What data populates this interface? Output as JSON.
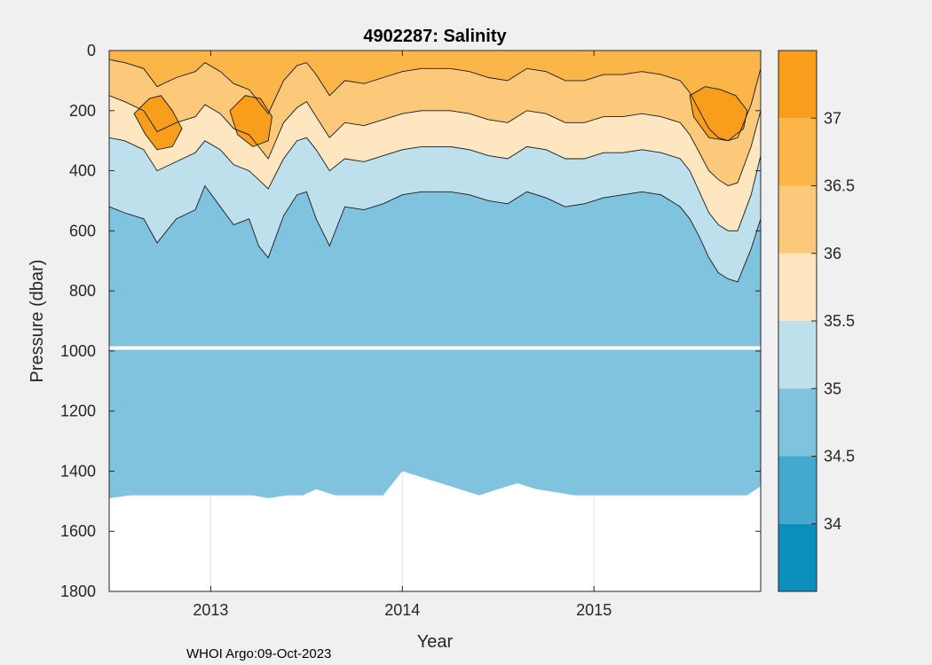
{
  "chart_data": {
    "type": "heatmap",
    "title": "4902287:  Salinity",
    "xlabel": "Year",
    "ylabel": "Pressure (dbar)",
    "footer": "WHOI Argo:09-Oct-2023",
    "xlim": [
      2012.47,
      2015.87
    ],
    "ylim": [
      0,
      1800
    ],
    "x_ticks": [
      {
        "value": 2013,
        "label": "2013"
      },
      {
        "value": 2014,
        "label": "2014"
      },
      {
        "value": 2015,
        "label": "2015"
      }
    ],
    "y_ticks": [
      {
        "value": 0,
        "label": "0"
      },
      {
        "value": 200,
        "label": "200"
      },
      {
        "value": 400,
        "label": "400"
      },
      {
        "value": 600,
        "label": "600"
      },
      {
        "value": 800,
        "label": "800"
      },
      {
        "value": 1000,
        "label": "1000"
      },
      {
        "value": 1200,
        "label": "1200"
      },
      {
        "value": 1400,
        "label": "1400"
      },
      {
        "value": 1600,
        "label": "1600"
      },
      {
        "value": 1800,
        "label": "1800"
      }
    ],
    "colorbar": {
      "range": [
        33.5,
        37.5
      ],
      "bands": [
        {
          "from": 33.5,
          "to": 34.0,
          "color": "#0d8fbd"
        },
        {
          "from": 34.0,
          "to": 34.5,
          "color": "#45a9cf"
        },
        {
          "from": 34.5,
          "to": 35.0,
          "color": "#7fc3df"
        },
        {
          "from": 35.0,
          "to": 35.5,
          "color": "#bde0ec"
        },
        {
          "from": 35.5,
          "to": 36.0,
          "color": "#fde6c0"
        },
        {
          "from": 36.0,
          "to": 36.5,
          "color": "#fcc97b"
        },
        {
          "from": 36.5,
          "to": 37.0,
          "color": "#fbb549"
        },
        {
          "from": 37.0,
          "to": 37.5,
          "color": "#f99e1c"
        }
      ],
      "ticks": [
        {
          "value": 34,
          "label": "34"
        },
        {
          "value": 34.5,
          "label": "34.5"
        },
        {
          "value": 35,
          "label": "35"
        },
        {
          "value": 35.5,
          "label": "35.5"
        },
        {
          "value": 36,
          "label": "36"
        },
        {
          "value": 36.5,
          "label": "36.5"
        },
        {
          "value": 37,
          "label": "37"
        }
      ]
    },
    "contours": [
      {
        "level": 34.5,
        "color": "#7fc3df",
        "x": [
          2012.47,
          2012.58,
          2012.7,
          2012.75,
          2012.85,
          2013.0,
          2013.15,
          2013.22,
          2013.3,
          2013.4,
          2013.48,
          2013.55,
          2013.65,
          2013.8,
          2013.9,
          2014.0,
          2014.2,
          2014.4,
          2014.5,
          2014.6,
          2014.7,
          2014.9,
          2015.05,
          2015.2,
          2015.4,
          2015.5,
          2015.55,
          2015.6,
          2015.7,
          2015.8,
          2015.87
        ],
        "pressure": [
          1490,
          1480,
          1480,
          1480,
          1480,
          1480,
          1480,
          1480,
          1490,
          1480,
          1480,
          1460,
          1480,
          1480,
          1480,
          1400,
          1440,
          1480,
          1460,
          1440,
          1460,
          1480,
          1480,
          1480,
          1480,
          1480,
          1480,
          1480,
          1480,
          1480,
          1450
        ]
      },
      {
        "level": 35.0,
        "color": "#bde0ec",
        "x": [
          2012.47,
          2012.55,
          2012.65,
          2012.72,
          2012.82,
          2012.92,
          2012.97,
          2013.05,
          2013.12,
          2013.2,
          2013.25,
          2013.3,
          2013.38,
          2013.45,
          2013.5,
          2013.55,
          2013.62,
          2013.7,
          2013.8,
          2013.9,
          2014.0,
          2014.1,
          2014.25,
          2014.35,
          2014.45,
          2014.55,
          2014.65,
          2014.75,
          2014.85,
          2014.95,
          2015.05,
          2015.15,
          2015.25,
          2015.35,
          2015.45,
          2015.5,
          2015.55,
          2015.6,
          2015.65,
          2015.7,
          2015.75,
          2015.82,
          2015.87
        ],
        "pressure": [
          520,
          540,
          560,
          640,
          560,
          530,
          450,
          520,
          580,
          560,
          650,
          690,
          550,
          480,
          470,
          560,
          650,
          520,
          530,
          510,
          480,
          470,
          470,
          480,
          500,
          510,
          470,
          490,
          520,
          510,
          490,
          480,
          470,
          480,
          520,
          560,
          620,
          690,
          740,
          760,
          770,
          660,
          560
        ]
      },
      {
        "level": 35.5,
        "color": "#fde6c0",
        "x": [
          2012.47,
          2012.55,
          2012.65,
          2012.72,
          2012.82,
          2012.92,
          2012.97,
          2013.05,
          2013.12,
          2013.2,
          2013.25,
          2013.3,
          2013.38,
          2013.45,
          2013.5,
          2013.55,
          2013.62,
          2013.7,
          2013.8,
          2013.9,
          2014.0,
          2014.1,
          2014.25,
          2014.35,
          2014.45,
          2014.55,
          2014.65,
          2014.75,
          2014.85,
          2014.95,
          2015.05,
          2015.15,
          2015.25,
          2015.35,
          2015.45,
          2015.5,
          2015.55,
          2015.6,
          2015.65,
          2015.7,
          2015.75,
          2015.82,
          2015.87
        ],
        "pressure": [
          290,
          300,
          330,
          400,
          370,
          340,
          300,
          330,
          380,
          400,
          430,
          460,
          360,
          300,
          290,
          330,
          400,
          360,
          370,
          350,
          330,
          320,
          320,
          330,
          350,
          360,
          320,
          330,
          360,
          360,
          340,
          340,
          330,
          340,
          360,
          400,
          470,
          540,
          580,
          600,
          600,
          480,
          350
        ]
      },
      {
        "level": 36.0,
        "color": "#fcc97b",
        "x": [
          2012.47,
          2012.55,
          2012.65,
          2012.72,
          2012.82,
          2012.92,
          2012.97,
          2013.05,
          2013.12,
          2013.2,
          2013.25,
          2013.3,
          2013.38,
          2013.45,
          2013.5,
          2013.55,
          2013.62,
          2013.7,
          2013.8,
          2013.9,
          2014.0,
          2014.1,
          2014.25,
          2014.35,
          2014.45,
          2014.55,
          2014.65,
          2014.75,
          2014.85,
          2014.95,
          2015.05,
          2015.15,
          2015.25,
          2015.35,
          2015.45,
          2015.5,
          2015.55,
          2015.6,
          2015.65,
          2015.7,
          2015.75,
          2015.82,
          2015.87
        ],
        "pressure": [
          150,
          170,
          200,
          270,
          240,
          220,
          180,
          210,
          260,
          280,
          320,
          360,
          240,
          190,
          170,
          220,
          290,
          240,
          250,
          230,
          210,
          200,
          200,
          210,
          230,
          240,
          200,
          210,
          240,
          240,
          220,
          220,
          210,
          220,
          240,
          280,
          340,
          400,
          430,
          450,
          440,
          320,
          200
        ]
      },
      {
        "level": 36.5,
        "color": "#fbb549",
        "x": [
          2012.47,
          2012.55,
          2012.65,
          2012.72,
          2012.82,
          2012.92,
          2012.97,
          2013.05,
          2013.12,
          2013.2,
          2013.25,
          2013.3,
          2013.38,
          2013.45,
          2013.5,
          2013.55,
          2013.62,
          2013.7,
          2013.8,
          2013.9,
          2014.0,
          2014.1,
          2014.25,
          2014.35,
          2014.45,
          2014.55,
          2014.65,
          2014.75,
          2014.85,
          2014.95,
          2015.05,
          2015.15,
          2015.25,
          2015.35,
          2015.45,
          2015.5,
          2015.55,
          2015.6,
          2015.65,
          2015.7,
          2015.75,
          2015.82,
          2015.87
        ],
        "pressure": [
          30,
          40,
          60,
          120,
          90,
          70,
          40,
          70,
          110,
          130,
          170,
          210,
          100,
          50,
          40,
          80,
          150,
          100,
          110,
          90,
          70,
          60,
          60,
          70,
          90,
          100,
          60,
          70,
          100,
          100,
          80,
          80,
          70,
          80,
          100,
          140,
          200,
          260,
          290,
          300,
          290,
          180,
          60
        ]
      },
      {
        "level": 37.0,
        "color": "#f99e1c",
        "x": [
          2012.6,
          2012.68,
          2012.74,
          2012.8,
          2012.85,
          2012.8,
          2012.72,
          2012.66,
          2012.6
        ],
        "pressure": [
          210,
          160,
          150,
          200,
          260,
          320,
          330,
          280,
          210
        ]
      },
      {
        "level": 37.0,
        "color": "#f99e1c",
        "x": [
          2013.1,
          2013.18,
          2013.26,
          2013.32,
          2013.3,
          2013.22,
          2013.14,
          2013.1
        ],
        "pressure": [
          200,
          150,
          160,
          220,
          300,
          320,
          280,
          200
        ]
      },
      {
        "level": 37.0,
        "color": "#f99e1c",
        "x": [
          2015.5,
          2015.58,
          2015.66,
          2015.74,
          2015.8,
          2015.78,
          2015.7,
          2015.6,
          2015.52,
          2015.5
        ],
        "pressure": [
          150,
          120,
          130,
          150,
          200,
          260,
          300,
          290,
          220,
          150
        ]
      }
    ],
    "gap_line_pressure": 990
  }
}
